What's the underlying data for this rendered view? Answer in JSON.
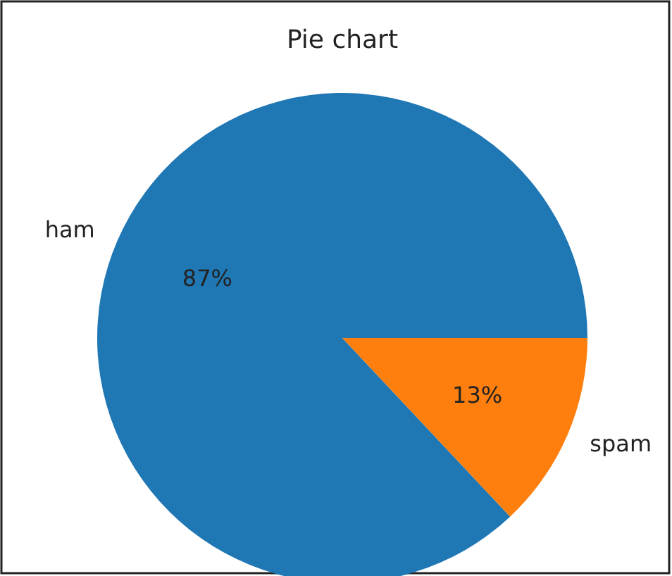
{
  "chart_data": {
    "type": "pie",
    "title": "Pie chart",
    "categories": [
      "ham",
      "spam"
    ],
    "values": [
      87,
      13
    ],
    "colors": [
      "#1f77b4",
      "#ff7f0e"
    ],
    "value_labels": [
      "87%",
      "13%"
    ]
  }
}
